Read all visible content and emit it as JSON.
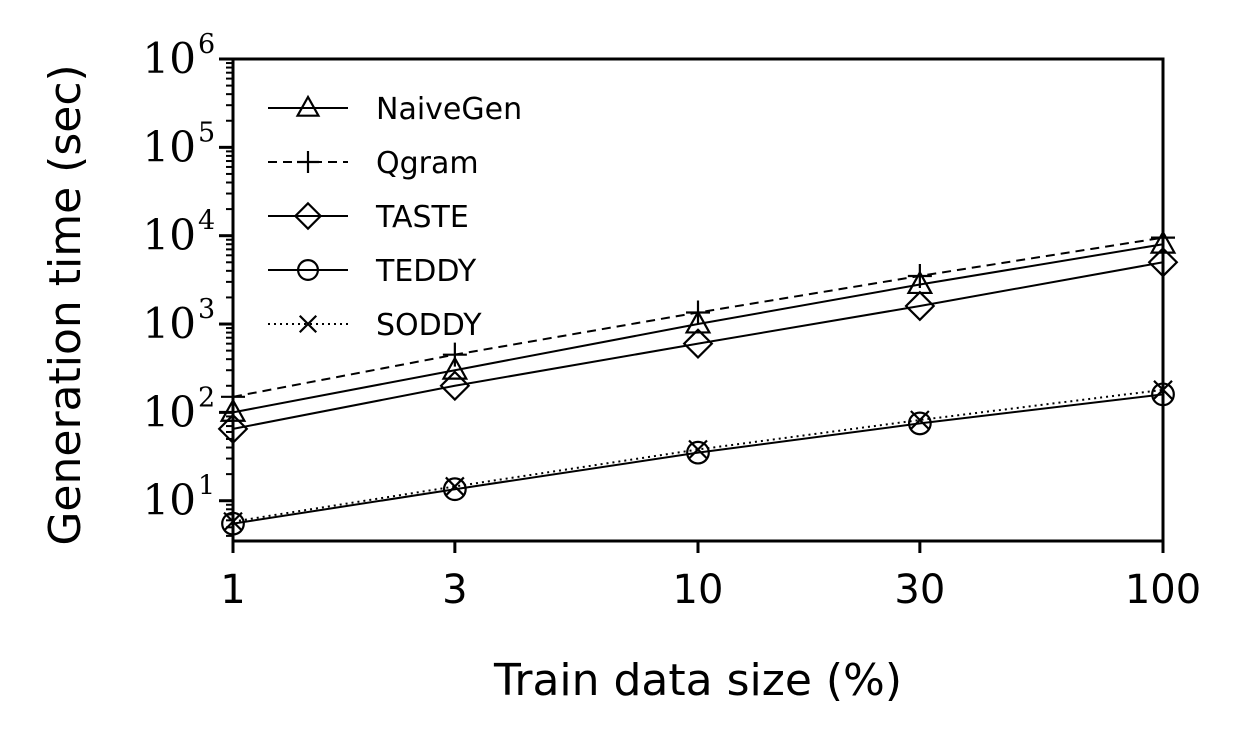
{
  "chart_data": {
    "type": "line",
    "xlabel": "Train data size (%)",
    "ylabel": "Generation time (sec)",
    "x": [
      1,
      3,
      10,
      30,
      100
    ],
    "x_tick_labels": [
      "1",
      "3",
      "10",
      "30",
      "100"
    ],
    "x_scale": "log",
    "y_scale": "log",
    "xlim": [
      1,
      100
    ],
    "ylim": [
      3.5,
      1000000
    ],
    "y_ticks": [
      {
        "base": "10",
        "exp": "1",
        "value": 10
      },
      {
        "base": "10",
        "exp": "2",
        "value": 100
      },
      {
        "base": "10",
        "exp": "3",
        "value": 1000
      },
      {
        "base": "10",
        "exp": "4",
        "value": 10000
      },
      {
        "base": "10",
        "exp": "5",
        "value": 100000
      },
      {
        "base": "10",
        "exp": "6",
        "value": 1000000
      }
    ],
    "grid": false,
    "legend_position": "top-left",
    "series": [
      {
        "name": "NaiveGen",
        "marker": "triangle",
        "line": "solid",
        "values": [
          100,
          300,
          1000,
          2800,
          8000
        ]
      },
      {
        "name": "Qgram",
        "marker": "plus",
        "line": "dashed",
        "values": [
          150,
          450,
          1350,
          3500,
          9500
        ]
      },
      {
        "name": "TASTE",
        "marker": "diamond",
        "line": "solid",
        "values": [
          65,
          200,
          600,
          1600,
          5000
        ]
      },
      {
        "name": "TEDDY",
        "marker": "circle",
        "line": "solid",
        "values": [
          5.5,
          13.5,
          35,
          75,
          160
        ]
      },
      {
        "name": "SODDY",
        "marker": "x",
        "line": "dotted",
        "values": [
          5.8,
          14.5,
          38,
          82,
          180
        ]
      }
    ]
  }
}
